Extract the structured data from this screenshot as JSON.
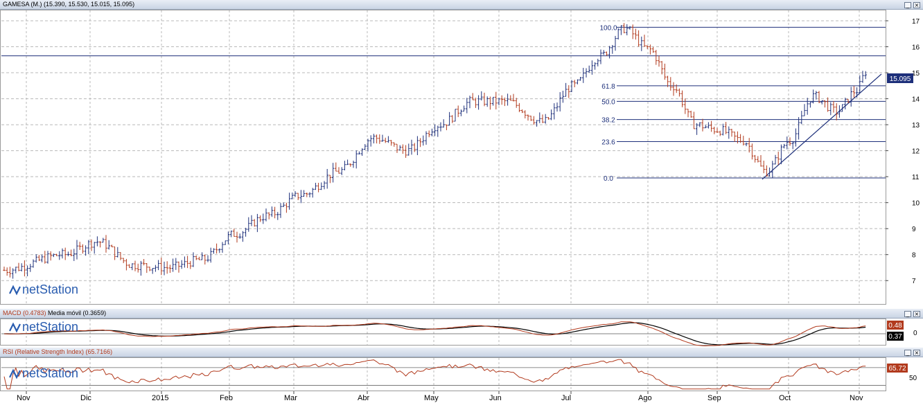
{
  "panels": {
    "price": {
      "title": "GAMESA (M.) (15.390, 15.530, 15.015, 15.095)",
      "last_value_label": "15.095"
    },
    "macd": {
      "title_macd": "MACD (0.4783)",
      "title_ma": "Media móvil (0.3659)",
      "macd_label": "0.48",
      "ma_label": "0.37",
      "zero_tick": "0"
    },
    "rsi": {
      "title": "RSI (Relative Strength Index) (65.7166)",
      "value_label": "65.72",
      "mid_tick": "50"
    }
  },
  "watermark": "netStation",
  "colors": {
    "background": "#ffffff",
    "grid": "#b8b8b8",
    "bar_up": "#1d2f7a",
    "bar_down": "#b23a1d",
    "fib_lines": "#1d2f7a",
    "macd_line": "#b23a1d",
    "signal_line": "#000000",
    "panel_header": "#d5ddea",
    "value_box": "#1d2f7a"
  },
  "chart_data": [
    {
      "type": "ohlc",
      "instrument": "GAMESA",
      "x_ticks": [
        "Nov",
        "Dic",
        "2015",
        "Feb",
        "Mar",
        "Abr",
        "May",
        "Jun",
        "Jul",
        "Ago",
        "Sep",
        "Oct",
        "Nov"
      ],
      "y_ticks": [
        7,
        8,
        9,
        10,
        11,
        12,
        13,
        14,
        15,
        16,
        17
      ],
      "ylim": [
        6.1,
        17.4
      ],
      "grid": true,
      "last": {
        "open": 15.39,
        "high": 15.53,
        "low": 15.015,
        "close": 15.095
      },
      "series": [
        {
          "name": "price_path_approx",
          "x": [
            "Nov",
            "Nov",
            "Dic",
            "Dic",
            "2015",
            "2015",
            "Feb",
            "Feb",
            "Mar",
            "Mar",
            "Abr",
            "Abr",
            "May",
            "May",
            "Jun",
            "Jun",
            "Jul",
            "Jul",
            "Jul",
            "Ago",
            "Ago",
            "Ago",
            "Sep",
            "Sep",
            "Sep",
            "Oct",
            "Oct",
            "Oct",
            "Nov",
            "Nov"
          ],
          "values": [
            7.4,
            8.0,
            8.5,
            7.6,
            7.5,
            7.8,
            8.8,
            9.5,
            10.3,
            11.2,
            12.5,
            12.0,
            13.0,
            13.9,
            13.9,
            13.1,
            14.5,
            15.6,
            16.7,
            15.9,
            14.5,
            13.0,
            12.8,
            12.4,
            11.2,
            12.4,
            14.1,
            13.5,
            14.3,
            15.1
          ]
        }
      ],
      "fibonacci": {
        "levels": [
          {
            "label": "100.0",
            "value": 16.75
          },
          {
            "label": "61.8",
            "value": 14.5
          },
          {
            "label": "50.0",
            "value": 13.9
          },
          {
            "label": "38.2",
            "value": 13.2
          },
          {
            "label": "23.6",
            "value": 12.35
          },
          {
            "label": "0.0",
            "value": 10.95
          }
        ]
      },
      "resistance_line": 15.65,
      "trendline": {
        "from": {
          "x": "Sep",
          "value": 10.9
        },
        "to": {
          "x": "Nov",
          "value": 14.95
        }
      }
    },
    {
      "type": "line",
      "indicator": "MACD",
      "series": [
        {
          "name": "MACD",
          "last": 0.4783
        },
        {
          "name": "Media móvil",
          "last": 0.3659
        }
      ]
    },
    {
      "type": "line",
      "indicator": "RSI",
      "series": [
        {
          "name": "RSI",
          "last": 65.7166
        }
      ],
      "y_ticks": [
        50
      ]
    }
  ]
}
